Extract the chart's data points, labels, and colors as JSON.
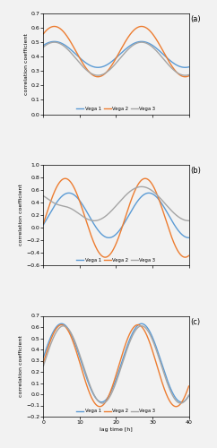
{
  "panel_a": {
    "label": "(a)",
    "ylim": [
      0,
      0.7
    ],
    "yticks": [
      0,
      0.1,
      0.2,
      0.3,
      0.4,
      0.5,
      0.6,
      0.7
    ]
  },
  "panel_b": {
    "label": "(b)",
    "ylim": [
      -0.6,
      1.0
    ],
    "yticks": [
      -0.6,
      -0.4,
      -0.2,
      0,
      0.2,
      0.4,
      0.6,
      0.8,
      1.0
    ]
  },
  "panel_c": {
    "label": "(c)",
    "ylim": [
      -0.2,
      0.7
    ],
    "yticks": [
      -0.2,
      -0.1,
      0,
      0.1,
      0.2,
      0.3,
      0.4,
      0.5,
      0.6,
      0.7
    ]
  },
  "xlim": [
    0,
    40
  ],
  "xticks": [
    0,
    10,
    20,
    30,
    40
  ],
  "xlabel": "lag time [h]",
  "ylabel": "correlation coefficient",
  "colors": {
    "vega1": "#5b9bd5",
    "vega2": "#ed7d31",
    "vega3": "#a5a5a5"
  },
  "bg_color": "#f2f2f2",
  "linewidth": 1.0
}
